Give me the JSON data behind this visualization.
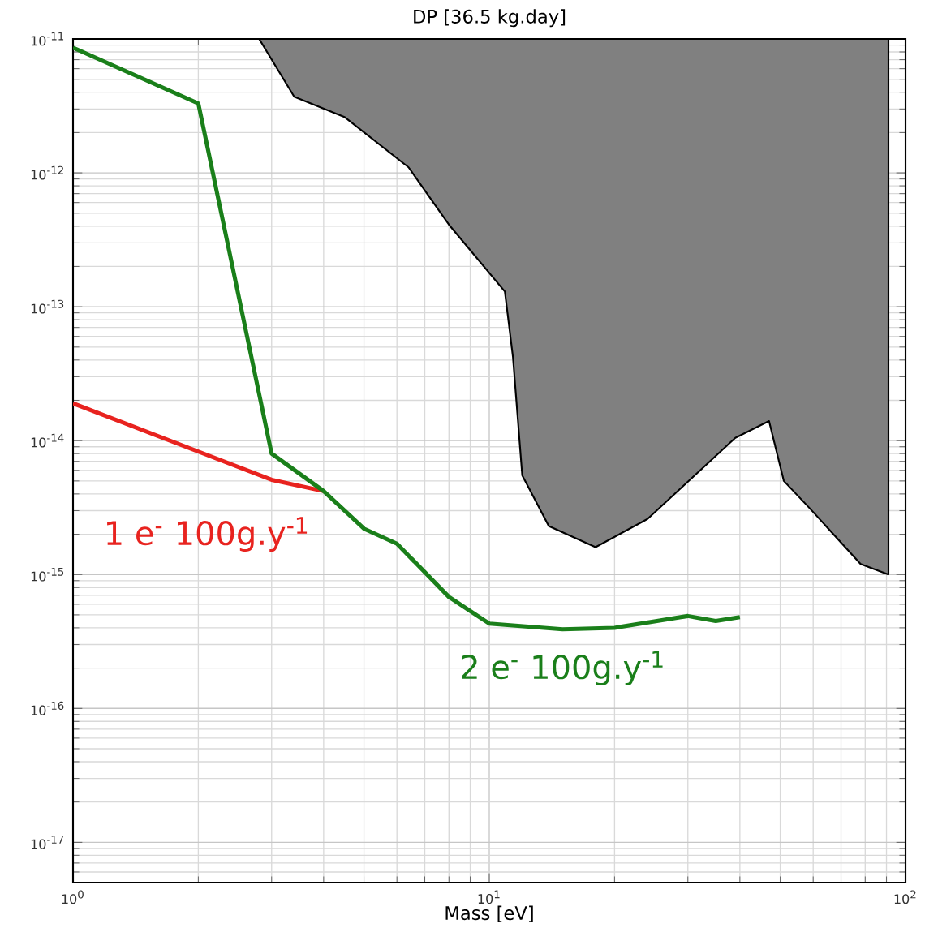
{
  "chart_data": {
    "type": "line",
    "title": "DP [36.5 kg.day]",
    "xlabel": "Mass [eV]",
    "log": "xy",
    "grid": true,
    "xlim": [
      1,
      100
    ],
    "ylim": [
      5e-18,
      1e-11
    ],
    "xticks": [
      {
        "value": 1,
        "label": "10$^{0}$"
      },
      {
        "value": 10,
        "label": "10$^{1}$"
      },
      {
        "value": 100,
        "label": "10$^{2}$"
      }
    ],
    "yticks": [
      {
        "value": 1e-17,
        "label": "10$^{-17}$"
      },
      {
        "value": 1e-16,
        "label": "10$^{-16}$"
      },
      {
        "value": 1e-15,
        "label": "10$^{-15}$"
      },
      {
        "value": 1e-14,
        "label": "10$^{-14}$"
      },
      {
        "value": 1e-13,
        "label": "10$^{-13}$"
      },
      {
        "value": 1e-12,
        "label": "10$^{-12}$"
      },
      {
        "value": 1e-11,
        "label": "10$^{-11}$"
      }
    ],
    "series": [
      {
        "name": "1 e$^{-}$ 100g.y$^{-1}$",
        "color": "#e8231f",
        "x": [
          1,
          3,
          4
        ],
        "values": [
          1.9e-14,
          5.1e-15,
          4.2e-15
        ]
      },
      {
        "name": "2 e$^{-}$ 100g.y$^{-1}$",
        "color": "#1a7f1a",
        "x": [
          1,
          2,
          3,
          4,
          5,
          6,
          8,
          10,
          15,
          20,
          30,
          35,
          40
        ],
        "values": [
          8.6e-12,
          3.3e-12,
          8e-15,
          4.2e-15,
          2.2e-15,
          1.7e-15,
          6.8e-16,
          4.3e-16,
          3.9e-16,
          4e-16,
          4.9e-16,
          4.5e-16,
          4.8e-16
        ]
      },
      {
        "type": "area",
        "color": "#808080",
        "x": [
          2.8,
          3.4,
          4.5,
          6.4,
          8,
          10.9,
          11.4,
          12,
          13.9,
          18,
          24,
          39,
          47,
          51,
          59,
          78,
          91,
          91
        ],
        "values": [
          1e-11,
          3.7e-12,
          2.6e-12,
          1.1e-12,
          4.1e-13,
          1.3e-13,
          4.2e-14,
          5.5e-15,
          2.3e-15,
          1.6e-15,
          2.6e-15,
          1.05e-14,
          1.4e-14,
          5e-15,
          3.1e-15,
          1.2e-15,
          1e-15,
          1e-11
        ]
      }
    ]
  }
}
